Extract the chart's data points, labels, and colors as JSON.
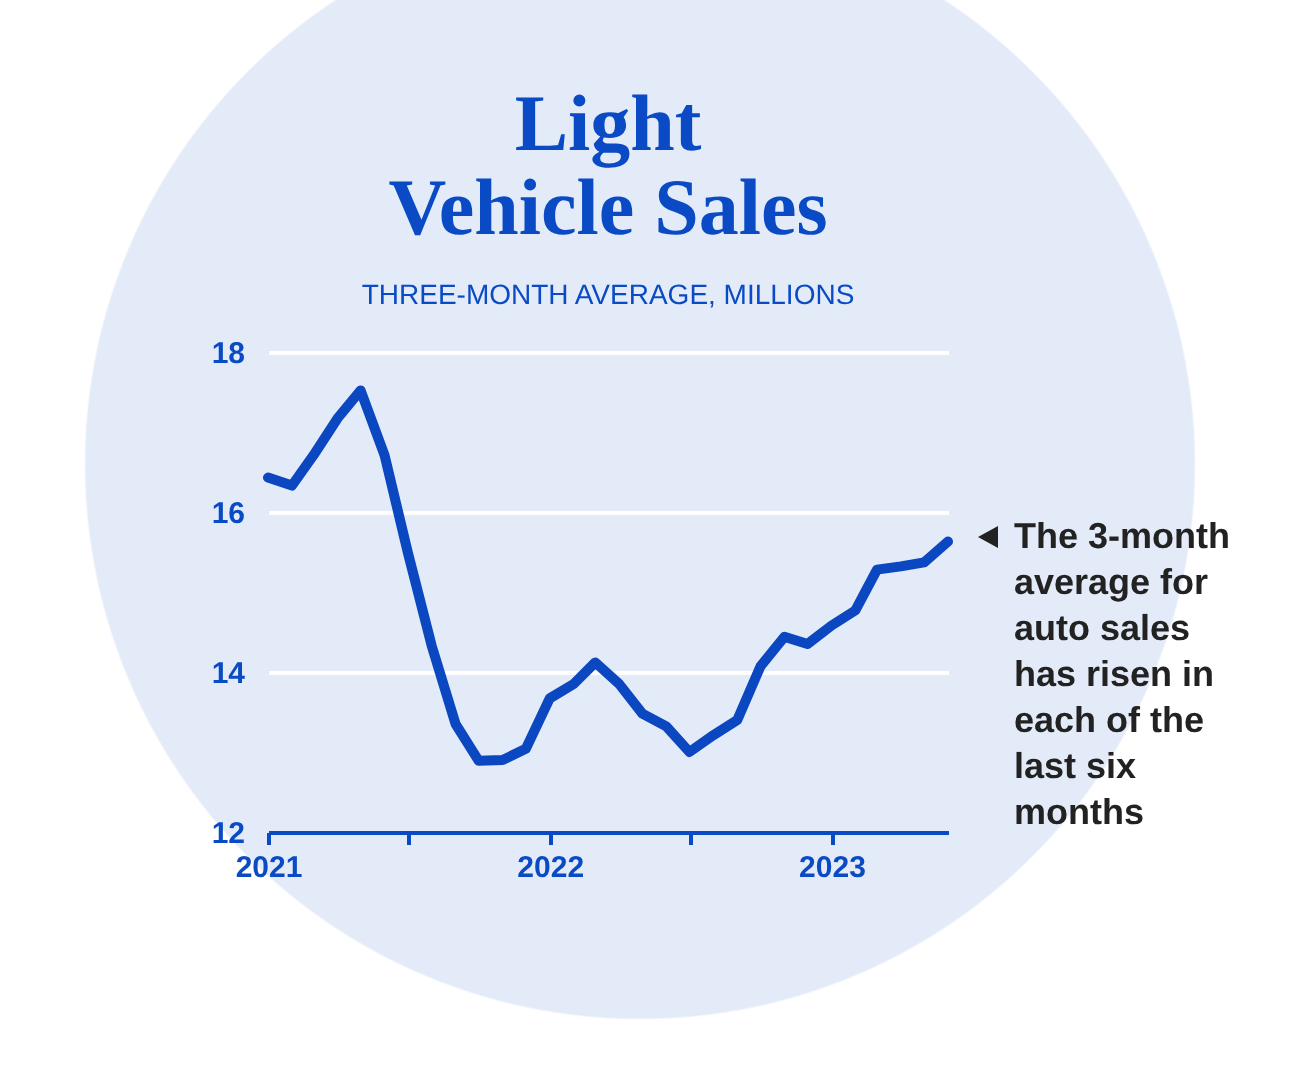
{
  "chart_data": {
    "type": "line",
    "title": "Light Vehicle Sales",
    "subtitle": "THREE-MONTH AVERAGE, MILLIONS",
    "x": [
      "2021-01",
      "2021-02",
      "2021-03",
      "2021-04",
      "2021-05",
      "2021-06",
      "2021-07",
      "2021-08",
      "2021-09",
      "2021-10",
      "2021-11",
      "2021-12",
      "2022-01",
      "2022-02",
      "2022-03",
      "2022-04",
      "2022-05",
      "2022-06",
      "2022-07",
      "2022-08",
      "2022-09",
      "2022-10",
      "2022-11",
      "2022-12",
      "2023-01",
      "2023-02",
      "2023-03",
      "2023-04",
      "2023-05",
      "2023-06"
    ],
    "series": [
      {
        "color": "#0a47c0",
        "values": [
          16.43,
          16.33,
          16.71,
          17.17,
          17.52,
          16.71,
          15.5,
          14.33,
          13.35,
          12.89,
          12.9,
          13.04,
          13.67,
          13.85,
          14.12,
          13.85,
          13.48,
          13.32,
          13.0,
          13.21,
          13.4,
          14.07,
          14.44,
          14.35,
          14.58,
          14.77,
          15.28,
          15.32,
          15.37,
          15.63
        ]
      }
    ],
    "xlim": [
      "2021-01",
      "2023-06"
    ],
    "xticks": [
      "2021",
      {
        "value": "2021-07",
        "label": null
      },
      "2022",
      {
        "value": "2022-07",
        "label": null
      },
      "2023"
    ],
    "ylim": [
      12,
      18
    ],
    "yticks": [
      12,
      14,
      16,
      18
    ],
    "grid": "y",
    "marker": "none",
    "line_style": "solid",
    "annotations": [
      "The 3-month average for auto sales has risen in each of the last six months"
    ]
  }
}
